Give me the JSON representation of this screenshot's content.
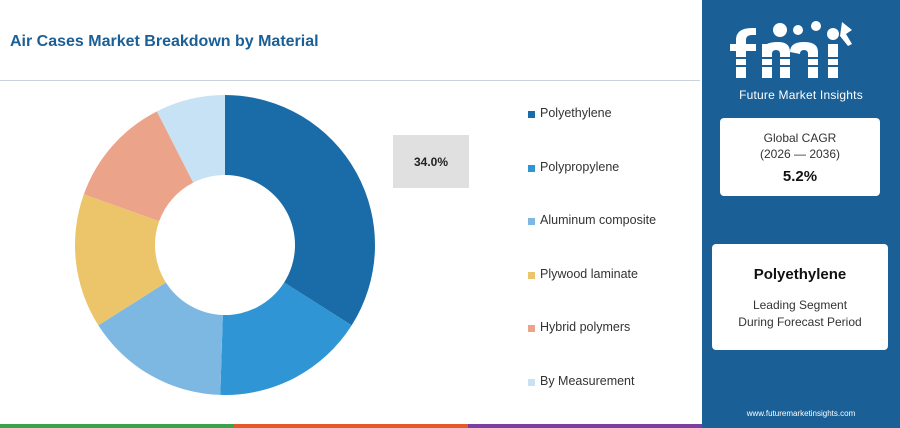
{
  "title": "Air Cases Market Breakdown by Material",
  "chart_data": {
    "type": "pie",
    "variant": "donut",
    "categories": [
      "Polyethylene",
      "Polypropylene",
      "Aluminum composite",
      "Plywood laminate",
      "Hybrid polymers",
      "By Measurement"
    ],
    "values": [
      34.0,
      16.5,
      15.5,
      14.5,
      12.0,
      7.5
    ],
    "colors": [
      "#1a6ca8",
      "#2f95d5",
      "#7db8e2",
      "#ecc56b",
      "#eba48a",
      "#c6e2f4"
    ],
    "highlight_label": "34.0%",
    "legend_position": "right"
  },
  "sidebar": {
    "logo_text": "Future Market Insights",
    "cagr_label_line1": "Global CAGR",
    "cagr_label_line2": "(2026 — 2036)",
    "cagr_value": "5.2%",
    "leading_segment": "Polyethylene",
    "leading_desc_line1": "Leading Segment",
    "leading_desc_line2": "During Forecast Period",
    "website": "www.futuremarketinsights.com"
  },
  "footer_colors": [
    "#3aa24a",
    "#e3592a",
    "#7b3fa0"
  ]
}
